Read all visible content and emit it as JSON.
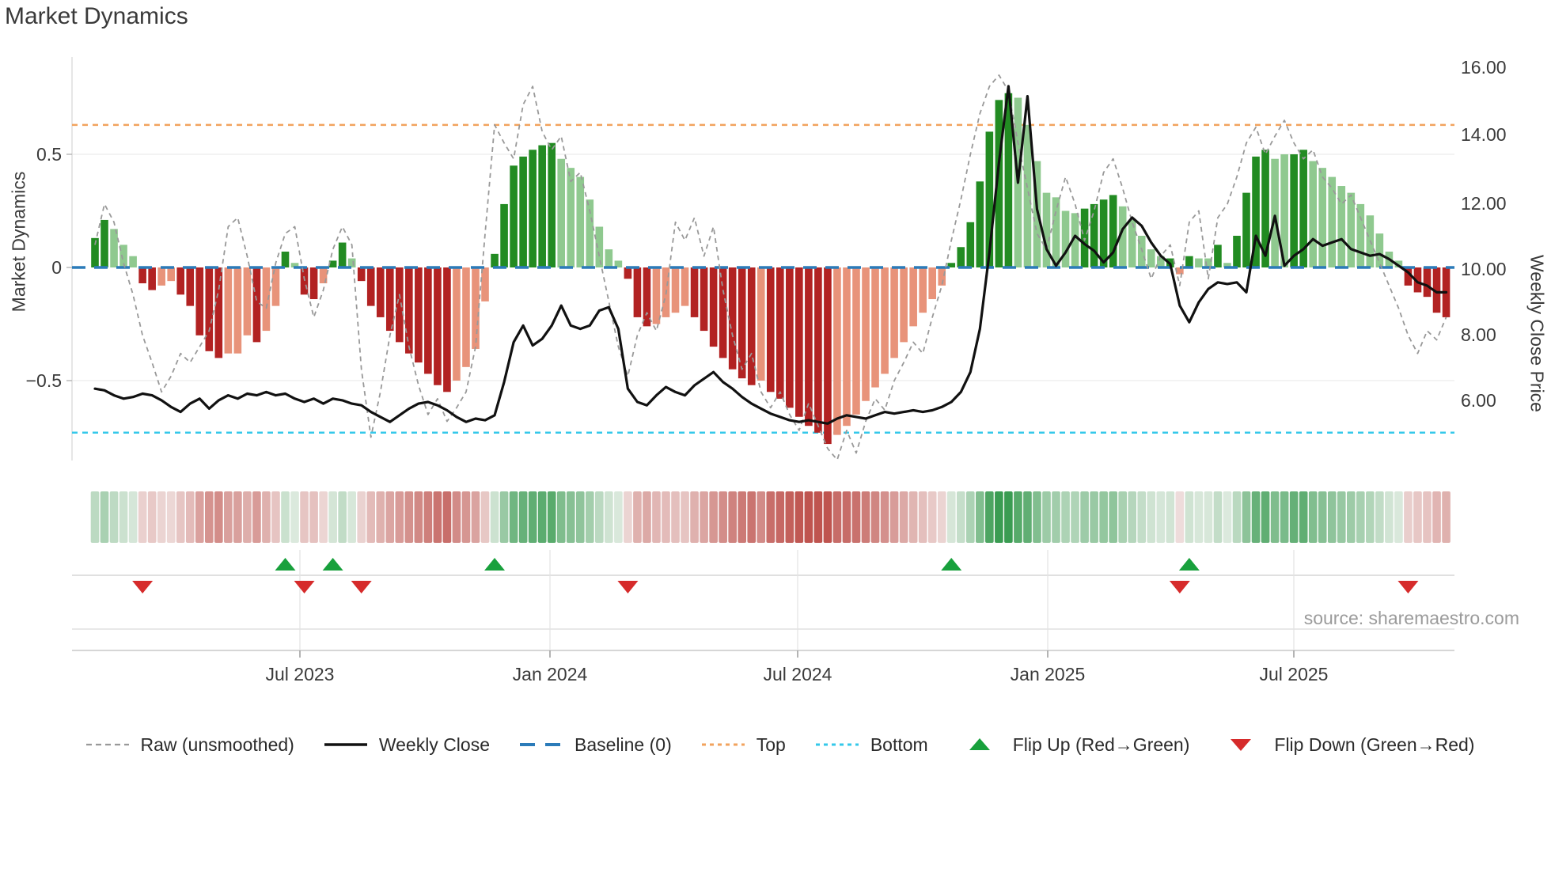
{
  "title": "Market Dynamics",
  "source": "source: sharemaestro.com",
  "axes": {
    "left_label": "Market Dynamics",
    "right_label": "Weekly Close Price",
    "left_ticks": [
      "0.5",
      "0",
      "−0.5"
    ],
    "right_ticks": [
      "16.00",
      "14.00",
      "12.00",
      "10.00",
      "8.00",
      "6.00"
    ],
    "x_ticks": [
      "Jul 2023",
      "Jan 2024",
      "Jul 2024",
      "Jan 2025",
      "Jul 2025"
    ]
  },
  "legend": [
    {
      "label": "Raw (unsmoothed)",
      "type": "dashed-line",
      "color": "#999999"
    },
    {
      "label": "Weekly Close",
      "type": "solid-line",
      "color": "#111111"
    },
    {
      "label": "Baseline (0)",
      "type": "bold-dashed-line",
      "color": "#2b7bb9"
    },
    {
      "label": "Top",
      "type": "dotted-line",
      "color": "#f2a35e"
    },
    {
      "label": "Bottom",
      "type": "dotted-line",
      "color": "#35c8ea"
    },
    {
      "label": "Flip Up (Red→Green)",
      "type": "triangle-up",
      "color": "#18a03c"
    },
    {
      "label": "Flip Down (Green→Red)",
      "type": "triangle-down",
      "color": "#d62b2b"
    }
  ],
  "colors": {
    "bar_green_dark": "#228b22",
    "bar_green_light": "#8fc98f",
    "bar_red_dark": "#b22222",
    "bar_red_light": "#e8937a",
    "baseline": "#2b7bb9",
    "top_line": "#f2a35e",
    "bottom_line": "#35c8ea",
    "raw_line": "#999999",
    "close_line": "#111111",
    "grid": "#ececec",
    "heat_red": "#bf544f",
    "heat_green": "#3a9c52",
    "marker_up": "#18a03c",
    "marker_down": "#d62b2b"
  },
  "chart_data": {
    "type": "bar",
    "title": "Market Dynamics",
    "xlabel": "",
    "ylabel_left": "Market Dynamics",
    "ylabel_right": "Weekly Close Price",
    "x_tick_labels": [
      "Jul 2023",
      "Jan 2024",
      "Jul 2024",
      "Jan 2025",
      "Jul 2025"
    ],
    "left_axis_ticks": [
      0.5,
      0,
      -0.5
    ],
    "right_axis_ticks": [
      16,
      14,
      12,
      10,
      8,
      6
    ],
    "ylim_left": [
      -0.88,
      0.93
    ],
    "ylim_right": [
      5.2,
      16.4
    ],
    "baseline": 0,
    "top": 0.63,
    "bottom": -0.73,
    "n_weeks": 143,
    "dynamics": [
      0.13,
      0.21,
      0.17,
      0.1,
      0.05,
      -0.07,
      -0.1,
      -0.08,
      -0.06,
      -0.12,
      -0.17,
      -0.3,
      -0.37,
      -0.4,
      -0.38,
      -0.38,
      -0.3,
      -0.33,
      -0.28,
      -0.17,
      0.07,
      0.02,
      -0.12,
      -0.14,
      -0.07,
      0.03,
      0.11,
      0.04,
      -0.06,
      -0.17,
      -0.22,
      -0.28,
      -0.33,
      -0.38,
      -0.42,
      -0.47,
      -0.52,
      -0.55,
      -0.5,
      -0.44,
      -0.36,
      -0.15,
      0.06,
      0.28,
      0.45,
      0.49,
      0.52,
      0.54,
      0.55,
      0.48,
      0.44,
      0.4,
      0.3,
      0.18,
      0.08,
      0.03,
      -0.05,
      -0.22,
      -0.26,
      -0.25,
      -0.22,
      -0.2,
      -0.17,
      -0.22,
      -0.28,
      -0.35,
      -0.4,
      -0.45,
      -0.49,
      -0.52,
      -0.5,
      -0.55,
      -0.58,
      -0.62,
      -0.66,
      -0.7,
      -0.73,
      -0.78,
      -0.74,
      -0.7,
      -0.65,
      -0.59,
      -0.53,
      -0.47,
      -0.4,
      -0.33,
      -0.26,
      -0.2,
      -0.14,
      -0.08,
      0.02,
      0.09,
      0.2,
      0.38,
      0.6,
      0.74,
      0.77,
      0.75,
      0.63,
      0.47,
      0.33,
      0.31,
      0.25,
      0.24,
      0.26,
      0.28,
      0.3,
      0.32,
      0.27,
      0.21,
      0.14,
      0.08,
      0.05,
      0.04,
      -0.03,
      0.05,
      0.04,
      0.04,
      0.1,
      0.02,
      0.14,
      0.33,
      0.49,
      0.52,
      0.48,
      0.5,
      0.5,
      0.52,
      0.47,
      0.44,
      0.4,
      0.36,
      0.33,
      0.28,
      0.23,
      0.15,
      0.07,
      0.03,
      -0.08,
      -0.11,
      -0.13,
      -0.2,
      -0.22
    ],
    "shade": "ddlllddlldddddllldlldlddlddlddddddddddlllldddddddllllllldddlllldddddddldddddddlllllllllllldddddddllllllldddd llllldldlldlddddllddllllllllllddddd",
    "weekly_close": [
      6.4,
      6.35,
      6.2,
      6.1,
      6.15,
      6.25,
      6.2,
      6.05,
      5.85,
      5.7,
      5.95,
      6.1,
      5.8,
      6.05,
      6.2,
      6.1,
      6.25,
      6.2,
      6.3,
      6.2,
      6.25,
      6.1,
      6.0,
      6.1,
      5.95,
      6.1,
      6.05,
      5.95,
      5.9,
      5.7,
      5.55,
      5.4,
      5.6,
      5.8,
      5.95,
      6.0,
      5.9,
      5.75,
      5.55,
      5.4,
      5.5,
      5.45,
      5.6,
      6.6,
      7.8,
      8.3,
      7.7,
      7.9,
      8.3,
      8.9,
      8.3,
      8.2,
      8.3,
      8.75,
      8.85,
      8.2,
      6.4,
      6.0,
      5.9,
      6.2,
      6.45,
      6.3,
      6.2,
      6.5,
      6.7,
      6.9,
      6.6,
      6.4,
      6.15,
      5.95,
      5.8,
      5.65,
      5.55,
      5.45,
      5.4,
      5.45,
      5.4,
      5.35,
      5.5,
      5.6,
      5.55,
      5.5,
      5.6,
      5.7,
      5.65,
      5.7,
      5.75,
      5.7,
      5.75,
      5.85,
      6.0,
      6.3,
      6.9,
      8.2,
      10.5,
      13.2,
      15.5,
      12.6,
      15.2,
      11.8,
      10.6,
      10.1,
      10.5,
      11.0,
      10.75,
      10.55,
      10.2,
      10.5,
      11.2,
      11.55,
      11.3,
      10.8,
      10.4,
      10.15,
      8.9,
      8.4,
      9.0,
      9.4,
      9.6,
      9.55,
      9.6,
      9.3,
      11.0,
      10.4,
      11.6,
      10.1,
      10.4,
      10.6,
      10.9,
      10.7,
      10.8,
      10.9,
      10.6,
      10.5,
      10.4,
      10.45,
      10.3,
      10.1,
      9.9,
      9.6,
      9.5,
      9.3,
      9.3
    ],
    "raw": [
      0.1,
      0.28,
      0.2,
      0.02,
      -0.12,
      -0.3,
      -0.42,
      -0.55,
      -0.48,
      -0.38,
      -0.42,
      -0.35,
      -0.28,
      -0.1,
      0.18,
      0.22,
      0.05,
      -0.15,
      -0.18,
      0.02,
      0.15,
      0.18,
      -0.05,
      -0.22,
      -0.1,
      0.08,
      0.18,
      0.1,
      -0.45,
      -0.75,
      -0.55,
      -0.3,
      -0.12,
      -0.35,
      -0.52,
      -0.65,
      -0.58,
      -0.68,
      -0.62,
      -0.55,
      -0.35,
      0.15,
      0.63,
      0.55,
      0.48,
      0.72,
      0.8,
      0.6,
      0.52,
      0.58,
      0.38,
      0.42,
      0.25,
      0.05,
      -0.15,
      -0.35,
      -0.48,
      -0.3,
      -0.2,
      -0.28,
      -0.12,
      0.2,
      0.12,
      0.22,
      0.05,
      0.18,
      -0.1,
      -0.3,
      -0.45,
      -0.38,
      -0.55,
      -0.62,
      -0.55,
      -0.65,
      -0.72,
      -0.6,
      -0.7,
      -0.8,
      -0.85,
      -0.72,
      -0.82,
      -0.68,
      -0.58,
      -0.63,
      -0.5,
      -0.42,
      -0.33,
      -0.38,
      -0.22,
      -0.08,
      0.12,
      0.3,
      0.5,
      0.68,
      0.8,
      0.85,
      0.78,
      0.55,
      0.35,
      0.15,
      0.08,
      0.25,
      0.4,
      0.28,
      0.12,
      0.25,
      0.42,
      0.48,
      0.35,
      0.2,
      0.08,
      -0.05,
      0.05,
      0.1,
      -0.08,
      0.2,
      0.25,
      -0.05,
      0.22,
      0.28,
      0.4,
      0.55,
      0.62,
      0.5,
      0.58,
      0.65,
      0.55,
      0.48,
      0.52,
      0.4,
      0.35,
      0.28,
      0.32,
      0.22,
      0.12,
      0.02,
      -0.08,
      -0.18,
      -0.3,
      -0.38,
      -0.28,
      -0.32,
      -0.22
    ],
    "flip_up_idx": [
      20,
      25,
      42,
      90,
      115
    ],
    "flip_down_idx": [
      5,
      22,
      28,
      56,
      114,
      138
    ],
    "legend_entries": [
      "Raw (unsmoothed)",
      "Weekly Close",
      "Baseline (0)",
      "Top",
      "Bottom",
      "Flip Up (Red→Green)",
      "Flip Down (Green→Red)"
    ],
    "grid": "on",
    "legend_position": "bottom"
  }
}
